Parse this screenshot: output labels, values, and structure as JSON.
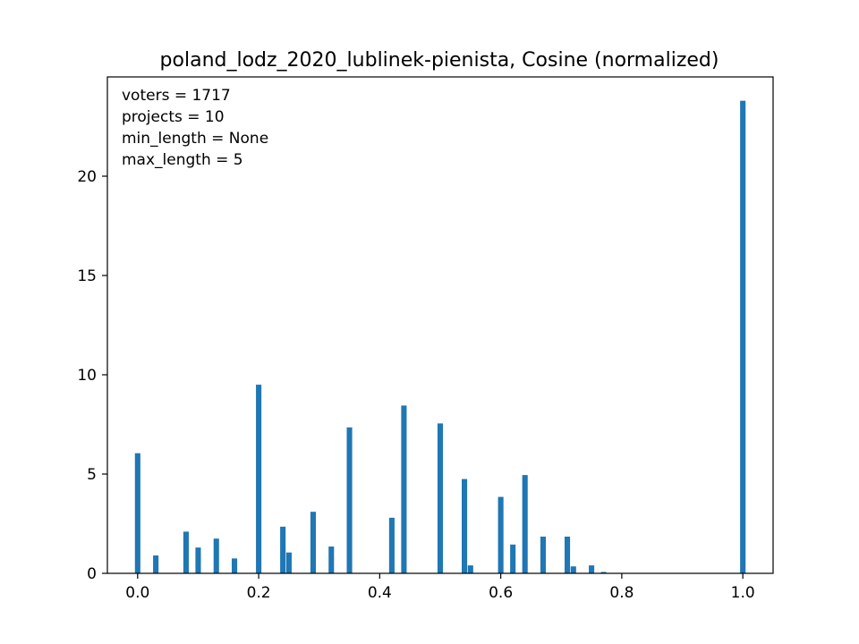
{
  "chart_data": {
    "type": "bar",
    "title": "poland_lodz_2020_lublinek-pienista, Cosine (normalized)",
    "xlabel": "",
    "ylabel": "",
    "xlim": [
      -0.05,
      1.05
    ],
    "ylim": [
      0,
      25
    ],
    "bin_width": 0.01,
    "bar_color": "#1f77b4",
    "grid": false,
    "x_ticks": [
      0.0,
      0.2,
      0.4,
      0.6,
      0.8,
      1.0
    ],
    "x_tick_labels": [
      "0.0",
      "0.2",
      "0.4",
      "0.6",
      "0.8",
      "1.0"
    ],
    "y_ticks": [
      0,
      5,
      10,
      15,
      20
    ],
    "y_tick_labels": [
      "0",
      "5",
      "10",
      "15",
      "20"
    ],
    "annotations": [
      "voters = 1717",
      "projects = 10",
      "min_length = None",
      "max_length = 5"
    ],
    "bars": [
      {
        "x": 0.0,
        "value": 6.05
      },
      {
        "x": 0.03,
        "value": 0.9
      },
      {
        "x": 0.08,
        "value": 2.1
      },
      {
        "x": 0.1,
        "value": 1.3
      },
      {
        "x": 0.13,
        "value": 1.75
      },
      {
        "x": 0.16,
        "value": 0.75
      },
      {
        "x": 0.2,
        "value": 9.5
      },
      {
        "x": 0.24,
        "value": 2.35
      },
      {
        "x": 0.25,
        "value": 1.05
      },
      {
        "x": 0.29,
        "value": 3.1
      },
      {
        "x": 0.32,
        "value": 1.35
      },
      {
        "x": 0.35,
        "value": 7.35
      },
      {
        "x": 0.42,
        "value": 2.8
      },
      {
        "x": 0.44,
        "value": 8.45
      },
      {
        "x": 0.5,
        "value": 7.55
      },
      {
        "x": 0.54,
        "value": 4.75
      },
      {
        "x": 0.55,
        "value": 0.4
      },
      {
        "x": 0.6,
        "value": 3.85
      },
      {
        "x": 0.62,
        "value": 1.45
      },
      {
        "x": 0.64,
        "value": 4.95
      },
      {
        "x": 0.67,
        "value": 1.85
      },
      {
        "x": 0.71,
        "value": 1.85
      },
      {
        "x": 0.72,
        "value": 0.35
      },
      {
        "x": 0.75,
        "value": 0.4
      },
      {
        "x": 0.77,
        "value": 0.07
      },
      {
        "x": 1.0,
        "value": 23.8
      }
    ]
  }
}
